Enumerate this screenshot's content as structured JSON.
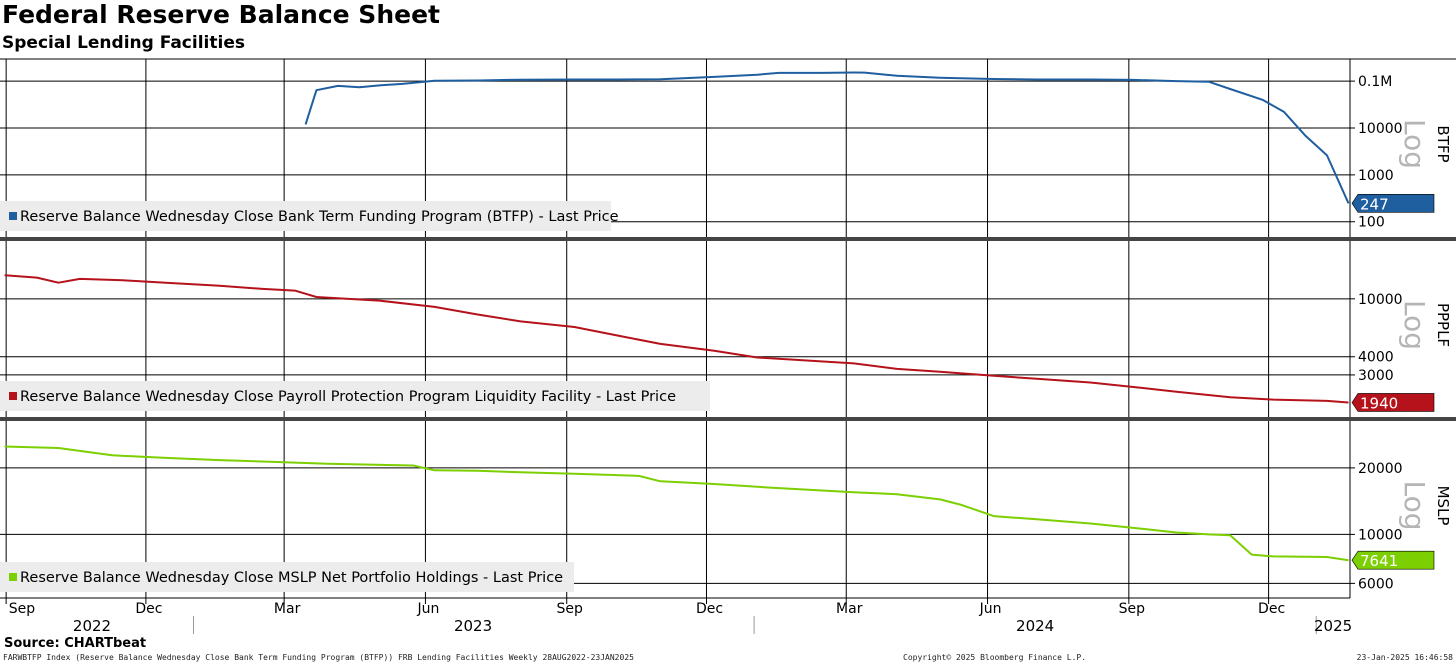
{
  "header": {
    "title": "Federal Reserve Balance Sheet",
    "subtitle": "Special Lending Facilities"
  },
  "footer": {
    "source": "Source: CHARTbeat",
    "index_line": "FARWBTFP Index (Reserve Balance Wednesday Close Bank Term Funding Program (BTFP)) FRB Lending Facilities  Weekly 28AUG2022-23JAN2025",
    "copyright": "Copyright© 2025 Bloomberg Finance L.P.",
    "timestamp": "23-Jan-2025 16:46:58"
  },
  "chart_data": {
    "type": "line",
    "x_axis": {
      "range": [
        "2022-08-28",
        "2025-01-23"
      ],
      "month_ticks": [
        "Sep",
        "Dec",
        "Mar",
        "Jun",
        "Sep",
        "Dec",
        "Mar",
        "Jun",
        "Sep",
        "Dec"
      ],
      "year_labels": [
        "2022",
        "2023",
        "2024",
        "2025"
      ]
    },
    "panels": [
      {
        "name": "BTFP",
        "scale_label": "Log",
        "color": "#1f5fa0",
        "y_scale": "log",
        "y_ticks": [
          "0.1M",
          "10000",
          "1000",
          "100"
        ],
        "ylim": [
          70,
          200000
        ],
        "last_value": "247",
        "legend": "Reserve Balance Wednesday Close Bank Term Funding Program (BTFP) - Last Price",
        "series": {
          "x": [
            "2023-03-15",
            "2023-03-22",
            "2023-04-05",
            "2023-04-19",
            "2023-05-03",
            "2023-05-17",
            "2023-06-07",
            "2023-07-05",
            "2023-08-02",
            "2023-09-06",
            "2023-10-04",
            "2023-11-01",
            "2023-12-06",
            "2024-01-03",
            "2024-01-17",
            "2024-02-14",
            "2024-03-06",
            "2024-03-13",
            "2024-04-03",
            "2024-05-01",
            "2024-06-05",
            "2024-07-03",
            "2024-08-07",
            "2024-09-04",
            "2024-10-02",
            "2024-10-23",
            "2024-11-06",
            "2024-11-27",
            "2024-12-11",
            "2024-12-25",
            "2025-01-08",
            "2025-01-22"
          ],
          "y": [
            11900,
            64000,
            79000,
            74000,
            82000,
            87000,
            102000,
            103000,
            107000,
            108000,
            108000,
            110000,
            123000,
            137000,
            150000,
            150000,
            153000,
            152000,
            130000,
            118000,
            111000,
            108000,
            108000,
            106000,
            100000,
            97000,
            68000,
            40000,
            22000,
            6800,
            2600,
            247
          ]
        }
      },
      {
        "name": "PPPLF",
        "scale_label": "Log",
        "color": "#b5121b",
        "y_scale": "log",
        "y_ticks": [
          "10000",
          "4000",
          "3000"
        ],
        "ylim": [
          1750,
          22000
        ],
        "last_value": "1940",
        "legend": "Reserve Balance Wednesday Close Payroll Protection Program Liquidity Facility - Last Price",
        "series": {
          "x": [
            "2022-08-31",
            "2022-09-21",
            "2022-10-05",
            "2022-10-19",
            "2022-11-16",
            "2022-12-14",
            "2023-01-18",
            "2023-02-15",
            "2023-03-08",
            "2023-03-22",
            "2023-05-03",
            "2023-06-07",
            "2023-07-05",
            "2023-08-02",
            "2023-09-06",
            "2023-10-04",
            "2023-11-01",
            "2023-12-06",
            "2024-01-03",
            "2024-02-07",
            "2024-03-06",
            "2024-04-03",
            "2024-05-01",
            "2024-06-05",
            "2024-07-03",
            "2024-08-07",
            "2024-09-04",
            "2024-10-02",
            "2024-11-06",
            "2024-12-04",
            "2025-01-08",
            "2025-01-22"
          ],
          "y": [
            14500,
            14000,
            12900,
            13700,
            13400,
            12900,
            12300,
            11700,
            11400,
            10300,
            9700,
            8800,
            7800,
            7000,
            6400,
            5600,
            4900,
            4400,
            3950,
            3750,
            3600,
            3300,
            3150,
            2960,
            2820,
            2660,
            2480,
            2300,
            2110,
            2030,
            1990,
            1940
          ]
        }
      },
      {
        "name": "MSLP",
        "scale_label": "Log",
        "color": "#7ccf00",
        "y_scale": "log",
        "y_ticks": [
          "20000",
          "10000",
          "6000"
        ],
        "ylim": [
          5600,
          30000
        ],
        "last_value": "7641",
        "legend": "Reserve Balance Wednesday Close MSLP Net Portfolio Holdings - Last Price",
        "series": {
          "x": [
            "2022-08-31",
            "2022-10-05",
            "2022-11-09",
            "2022-12-14",
            "2023-01-18",
            "2023-02-22",
            "2023-03-29",
            "2023-05-24",
            "2023-06-07",
            "2023-07-05",
            "2023-08-02",
            "2023-09-06",
            "2023-10-18",
            "2023-11-01",
            "2023-12-06",
            "2024-01-10",
            "2024-02-07",
            "2024-03-06",
            "2024-04-03",
            "2024-05-01",
            "2024-05-15",
            "2024-06-05",
            "2024-07-03",
            "2024-08-07",
            "2024-09-04",
            "2024-10-02",
            "2024-10-23",
            "2024-11-06",
            "2024-11-20",
            "2024-12-04",
            "2025-01-08",
            "2025-01-22"
          ],
          "y": [
            25000,
            24600,
            22800,
            22200,
            21700,
            21300,
            20900,
            20500,
            19500,
            19400,
            19100,
            18800,
            18400,
            17400,
            16900,
            16300,
            15900,
            15500,
            15200,
            14400,
            13600,
            12100,
            11700,
            11200,
            10700,
            10200,
            10000,
            9900,
            8100,
            7950,
            7900,
            7641
          ]
        }
      }
    ]
  }
}
